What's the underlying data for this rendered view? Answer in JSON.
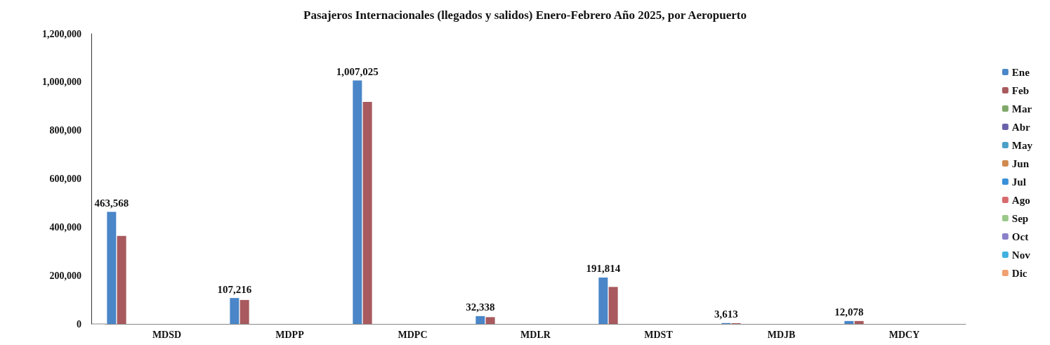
{
  "chart_data": {
    "type": "bar",
    "title": "Pasajeros Internacionales (llegados y salidos) Enero-Febrero Año 2025, por Aeropuerto",
    "categories": [
      "MDSD",
      "MDPP",
      "MDPC",
      "MDLR",
      "MDST",
      "MDJB",
      "MDCY"
    ],
    "series": [
      {
        "name": "Ene",
        "color": "#4a86c8",
        "values": [
          463568,
          107216,
          1007025,
          32338,
          191814,
          3613,
          12078
        ],
        "value_labels": [
          "463,568",
          "107,216",
          "1,007,025",
          "32,338",
          "191,814",
          "3,613",
          "12,078"
        ]
      },
      {
        "name": "Feb",
        "color": "#a85a5e",
        "values": [
          364000,
          99000,
          918000,
          28000,
          153000,
          3000,
          12000
        ]
      },
      {
        "name": "Mar",
        "color": "#7fa86a",
        "values": [
          null,
          null,
          null,
          null,
          null,
          null,
          null
        ]
      },
      {
        "name": "Abr",
        "color": "#6a62a8",
        "values": [
          null,
          null,
          null,
          null,
          null,
          null,
          null
        ]
      },
      {
        "name": "May",
        "color": "#4aa0c8",
        "values": [
          null,
          null,
          null,
          null,
          null,
          null,
          null
        ]
      },
      {
        "name": "Jun",
        "color": "#d08a50",
        "values": [
          null,
          null,
          null,
          null,
          null,
          null,
          null
        ]
      },
      {
        "name": "Jul",
        "color": "#3a90d8",
        "values": [
          null,
          null,
          null,
          null,
          null,
          null,
          null
        ]
      },
      {
        "name": "Ago",
        "color": "#d86a6e",
        "values": [
          null,
          null,
          null,
          null,
          null,
          null,
          null
        ]
      },
      {
        "name": "Sep",
        "color": "#9ac88a",
        "values": [
          null,
          null,
          null,
          null,
          null,
          null,
          null
        ]
      },
      {
        "name": "Oct",
        "color": "#8a80c8",
        "values": [
          null,
          null,
          null,
          null,
          null,
          null,
          null
        ]
      },
      {
        "name": "Nov",
        "color": "#40b0e0",
        "values": [
          null,
          null,
          null,
          null,
          null,
          null,
          null
        ]
      },
      {
        "name": "Dic",
        "color": "#f0a070",
        "values": [
          null,
          null,
          null,
          null,
          null,
          null,
          null
        ]
      }
    ],
    "ylim": [
      0,
      1200000
    ],
    "yticks": [
      0,
      {
        "value": 200000,
        "label": "200,000"
      },
      {
        "value": 400000,
        "label": "400,000"
      },
      {
        "value": 600000,
        "label": "600,000"
      },
      {
        "value": 800000,
        "label": "800,000"
      },
      {
        "value": 1000000,
        "label": "1,000,000"
      },
      {
        "value": 1200000,
        "label": "1,200,000"
      }
    ],
    "grid": false,
    "legend": "right"
  }
}
